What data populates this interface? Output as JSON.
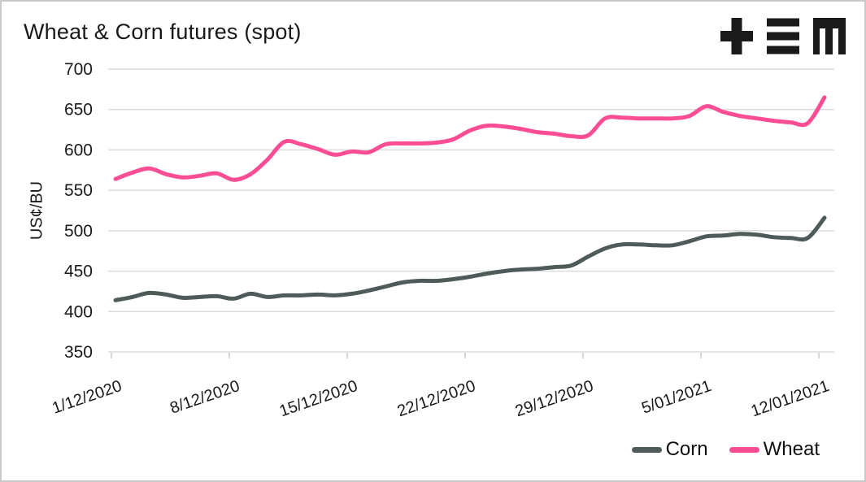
{
  "title": "Wheat & Corn futures (spot)",
  "icons": {
    "logo": "plus-equals-m-logo"
  },
  "colors": {
    "corn": "#4E5B5B",
    "wheat": "#FB4D94",
    "grid": "#dcdcdc",
    "tick": "#c9c9c9",
    "text": "#1a1a1a",
    "logo": "#1a1a1a"
  },
  "chart_data": {
    "type": "line",
    "title": "Wheat & Corn futures (spot)",
    "xlabel": "",
    "ylabel": "US¢/BU",
    "ylim": [
      350,
      700
    ],
    "yticks": [
      350,
      400,
      450,
      500,
      550,
      600,
      650,
      700
    ],
    "grid": "horizontal-only",
    "legend_position": "bottom-right",
    "x_tick_labels": [
      "1/12/2020",
      "8/12/2020",
      "15/12/2020",
      "22/12/2020",
      "29/12/2020",
      "5/01/2021",
      "12/01/2021"
    ],
    "x_tick_days": [
      0,
      7,
      14,
      21,
      28,
      35,
      42
    ],
    "x_range_days": 42,
    "series": [
      {
        "name": "Corn",
        "color": "#4E5B5B",
        "values": [
          414,
          418,
          423,
          421,
          417,
          418,
          419,
          416,
          422,
          418,
          420,
          420,
          421,
          420,
          422,
          426,
          431,
          436,
          438,
          438,
          440,
          443,
          447,
          450,
          452,
          453,
          455,
          457,
          468,
          478,
          483,
          483,
          482,
          482,
          487,
          493,
          494,
          496,
          495,
          492,
          491,
          491,
          516
        ]
      },
      {
        "name": "Wheat",
        "color": "#FB4D94",
        "values": [
          564,
          572,
          577,
          570,
          566,
          568,
          571,
          563,
          570,
          588,
          610,
          607,
          601,
          594,
          598,
          597,
          607,
          608,
          608,
          609,
          613,
          624,
          630,
          629,
          626,
          622,
          620,
          617,
          618,
          639,
          640,
          639,
          639,
          639,
          642,
          654,
          647,
          642,
          639,
          636,
          634,
          633,
          665
        ]
      }
    ]
  }
}
